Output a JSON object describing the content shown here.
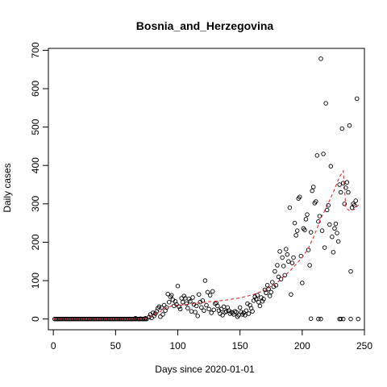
{
  "chart_data": {
    "type": "scatter",
    "title": "Bosnia_and_Herzegovina",
    "xlabel": "Days since 2020-01-01",
    "ylabel": "Daily cases",
    "xlim": [
      -4,
      250
    ],
    "ylim": [
      -28,
      705
    ],
    "xticks": [
      0,
      50,
      100,
      150,
      200,
      250
    ],
    "yticks": [
      0,
      100,
      200,
      300,
      400,
      500,
      600,
      700
    ],
    "grid": false,
    "series": [
      {
        "style": "points",
        "points": [
          [
            1,
            0
          ],
          [
            2,
            0
          ],
          [
            3,
            0
          ],
          [
            4,
            0
          ],
          [
            5,
            0
          ],
          [
            6,
            0
          ],
          [
            7,
            0
          ],
          [
            8,
            0
          ],
          [
            9,
            0
          ],
          [
            10,
            0
          ],
          [
            11,
            0
          ],
          [
            12,
            0
          ],
          [
            13,
            0
          ],
          [
            14,
            0
          ],
          [
            15,
            0
          ],
          [
            16,
            0
          ],
          [
            17,
            0
          ],
          [
            18,
            0
          ],
          [
            19,
            0
          ],
          [
            20,
            0
          ],
          [
            21,
            0
          ],
          [
            22,
            0
          ],
          [
            23,
            0
          ],
          [
            24,
            0
          ],
          [
            25,
            0
          ],
          [
            26,
            0
          ],
          [
            27,
            0
          ],
          [
            28,
            0
          ],
          [
            29,
            0
          ],
          [
            30,
            0
          ],
          [
            31,
            0
          ],
          [
            32,
            0
          ],
          [
            33,
            0
          ],
          [
            34,
            0
          ],
          [
            35,
            0
          ],
          [
            36,
            0
          ],
          [
            37,
            0
          ],
          [
            38,
            0
          ],
          [
            39,
            0
          ],
          [
            40,
            0
          ],
          [
            41,
            0
          ],
          [
            42,
            0
          ],
          [
            43,
            0
          ],
          [
            44,
            0
          ],
          [
            45,
            0
          ],
          [
            46,
            0
          ],
          [
            47,
            0
          ],
          [
            48,
            0
          ],
          [
            49,
            0
          ],
          [
            50,
            0
          ],
          [
            51,
            0
          ],
          [
            52,
            0
          ],
          [
            53,
            0
          ],
          [
            54,
            0
          ],
          [
            55,
            0
          ],
          [
            56,
            0
          ],
          [
            57,
            0
          ],
          [
            58,
            0
          ],
          [
            59,
            0
          ],
          [
            60,
            0
          ],
          [
            61,
            0
          ],
          [
            62,
            0
          ],
          [
            63,
            0
          ],
          [
            64,
            0
          ],
          [
            65,
            0
          ],
          [
            66,
            0
          ],
          [
            67,
            0
          ],
          [
            68,
            0
          ],
          [
            69,
            0
          ],
          [
            70,
            0
          ],
          [
            71,
            0
          ],
          [
            72,
            0
          ],
          [
            73,
            0
          ],
          [
            74,
            0
          ],
          [
            75,
            0
          ],
          [
            66,
            2
          ],
          [
            70,
            1
          ],
          [
            74,
            2
          ],
          [
            77,
            5
          ],
          [
            78,
            12
          ],
          [
            79,
            3
          ],
          [
            80,
            16
          ],
          [
            81,
            8
          ],
          [
            82,
            14
          ],
          [
            83,
            20
          ],
          [
            84,
            28
          ],
          [
            85,
            32
          ],
          [
            86,
            6
          ],
          [
            87,
            30
          ],
          [
            88,
            12
          ],
          [
            89,
            36
          ],
          [
            90,
            22
          ],
          [
            91,
            30
          ],
          [
            92,
            65
          ],
          [
            93,
            44
          ],
          [
            94,
            58
          ],
          [
            95,
            62
          ],
          [
            96,
            50
          ],
          [
            97,
            34
          ],
          [
            98,
            46
          ],
          [
            99,
            38
          ],
          [
            100,
            86
          ],
          [
            101,
            32
          ],
          [
            102,
            26
          ],
          [
            103,
            54
          ],
          [
            104,
            44
          ],
          [
            105,
            60
          ],
          [
            106,
            54
          ],
          [
            107,
            40
          ],
          [
            108,
            28
          ],
          [
            109,
            52
          ],
          [
            110,
            46
          ],
          [
            111,
            20
          ],
          [
            112,
            56
          ],
          [
            113,
            38
          ],
          [
            114,
            18
          ],
          [
            115,
            34
          ],
          [
            116,
            8
          ],
          [
            117,
            64
          ],
          [
            118,
            44
          ],
          [
            119,
            30
          ],
          [
            120,
            48
          ],
          [
            121,
            22
          ],
          [
            122,
            100
          ],
          [
            123,
            36
          ],
          [
            124,
            70
          ],
          [
            125,
            26
          ],
          [
            126,
            62
          ],
          [
            127,
            16
          ],
          [
            128,
            72
          ],
          [
            129,
            24
          ],
          [
            130,
            40
          ],
          [
            131,
            42
          ],
          [
            132,
            34
          ],
          [
            133,
            22
          ],
          [
            134,
            14
          ],
          [
            135,
            26
          ],
          [
            136,
            10
          ],
          [
            137,
            32
          ],
          [
            138,
            18
          ],
          [
            139,
            20
          ],
          [
            140,
            30
          ],
          [
            141,
            22
          ],
          [
            142,
            14
          ],
          [
            143,
            18
          ],
          [
            144,
            16
          ],
          [
            145,
            12
          ],
          [
            146,
            20
          ],
          [
            147,
            18
          ],
          [
            148,
            6
          ],
          [
            149,
            10
          ],
          [
            150,
            30
          ],
          [
            151,
            18
          ],
          [
            152,
            12
          ],
          [
            153,
            16
          ],
          [
            154,
            10
          ],
          [
            155,
            22
          ],
          [
            156,
            40
          ],
          [
            157,
            14
          ],
          [
            158,
            36
          ],
          [
            159,
            28
          ],
          [
            160,
            20
          ],
          [
            161,
            48
          ],
          [
            162,
            58
          ],
          [
            163,
            52
          ],
          [
            164,
            62
          ],
          [
            165,
            44
          ],
          [
            166,
            34
          ],
          [
            167,
            56
          ],
          [
            168,
            46
          ],
          [
            169,
            52
          ],
          [
            170,
            76
          ],
          [
            171,
            68
          ],
          [
            172,
            88
          ],
          [
            173,
            78
          ],
          [
            174,
            60
          ],
          [
            175,
            70
          ],
          [
            176,
            96
          ],
          [
            177,
            84
          ],
          [
            178,
            124
          ],
          [
            179,
            88
          ],
          [
            180,
            140
          ],
          [
            181,
            110
          ],
          [
            182,
            176
          ],
          [
            183,
            104
          ],
          [
            184,
            160
          ],
          [
            185,
            138
          ],
          [
            186,
            114
          ],
          [
            187,
            182
          ],
          [
            188,
            168
          ],
          [
            189,
            150
          ],
          [
            190,
            290
          ],
          [
            191,
            64
          ],
          [
            192,
            146
          ],
          [
            193,
            160
          ],
          [
            194,
            250
          ],
          [
            195,
            218
          ],
          [
            196,
            230
          ],
          [
            197,
            314
          ],
          [
            198,
            318
          ],
          [
            199,
            164
          ],
          [
            200,
            94
          ],
          [
            201,
            236
          ],
          [
            202,
            232
          ],
          [
            203,
            260
          ],
          [
            204,
            272
          ],
          [
            205,
            180
          ],
          [
            206,
            140
          ],
          [
            207,
            226
          ],
          [
            208,
            334
          ],
          [
            209,
            344
          ],
          [
            210,
            302
          ],
          [
            211,
            306
          ],
          [
            212,
            426
          ],
          [
            213,
            254
          ],
          [
            214,
            268
          ],
          [
            215,
            678
          ],
          [
            216,
            230
          ],
          [
            217,
            430
          ],
          [
            218,
            186
          ],
          [
            219,
            562
          ],
          [
            220,
            284
          ],
          [
            221,
            296
          ],
          [
            222,
            246
          ],
          [
            223,
            398
          ],
          [
            224,
            214
          ],
          [
            225,
            174
          ],
          [
            226,
            236
          ],
          [
            227,
            248
          ],
          [
            228,
            224
          ],
          [
            229,
            202
          ],
          [
            230,
            350
          ],
          [
            231,
            330
          ],
          [
            232,
            496
          ],
          [
            233,
            354
          ],
          [
            234,
            300
          ],
          [
            235,
            342
          ],
          [
            236,
            356
          ],
          [
            237,
            330
          ],
          [
            238,
            504
          ],
          [
            239,
            124
          ],
          [
            240,
            290
          ],
          [
            241,
            300
          ],
          [
            242,
            296
          ],
          [
            243,
            308
          ],
          [
            244,
            574
          ],
          [
            207,
            1
          ],
          [
            213,
            0
          ],
          [
            215,
            0
          ],
          [
            230,
            0
          ],
          [
            231,
            0
          ],
          [
            233,
            0
          ],
          [
            239,
            0
          ],
          [
            245,
            0
          ]
        ]
      },
      {
        "style": "dashed-line",
        "color": "#e41a1c",
        "points": [
          [
            0,
            0
          ],
          [
            20,
            0
          ],
          [
            40,
            0
          ],
          [
            60,
            0
          ],
          [
            70,
            0
          ],
          [
            75,
            3
          ],
          [
            80,
            10
          ],
          [
            85,
            18
          ],
          [
            90,
            28
          ],
          [
            95,
            34
          ],
          [
            100,
            36
          ],
          [
            105,
            37
          ],
          [
            110,
            39
          ],
          [
            115,
            41
          ],
          [
            120,
            43
          ],
          [
            125,
            45
          ],
          [
            130,
            46
          ],
          [
            140,
            50
          ],
          [
            150,
            55
          ],
          [
            160,
            63
          ],
          [
            170,
            75
          ],
          [
            180,
            95
          ],
          [
            190,
            125
          ],
          [
            200,
            160
          ],
          [
            205,
            185
          ],
          [
            210,
            220
          ],
          [
            215,
            262
          ],
          [
            220,
            295
          ],
          [
            225,
            330
          ],
          [
            230,
            370
          ],
          [
            233,
            386
          ],
          [
            235,
            290
          ],
          [
            238,
            282
          ],
          [
            242,
            286
          ],
          [
            246,
            300
          ]
        ]
      }
    ]
  }
}
